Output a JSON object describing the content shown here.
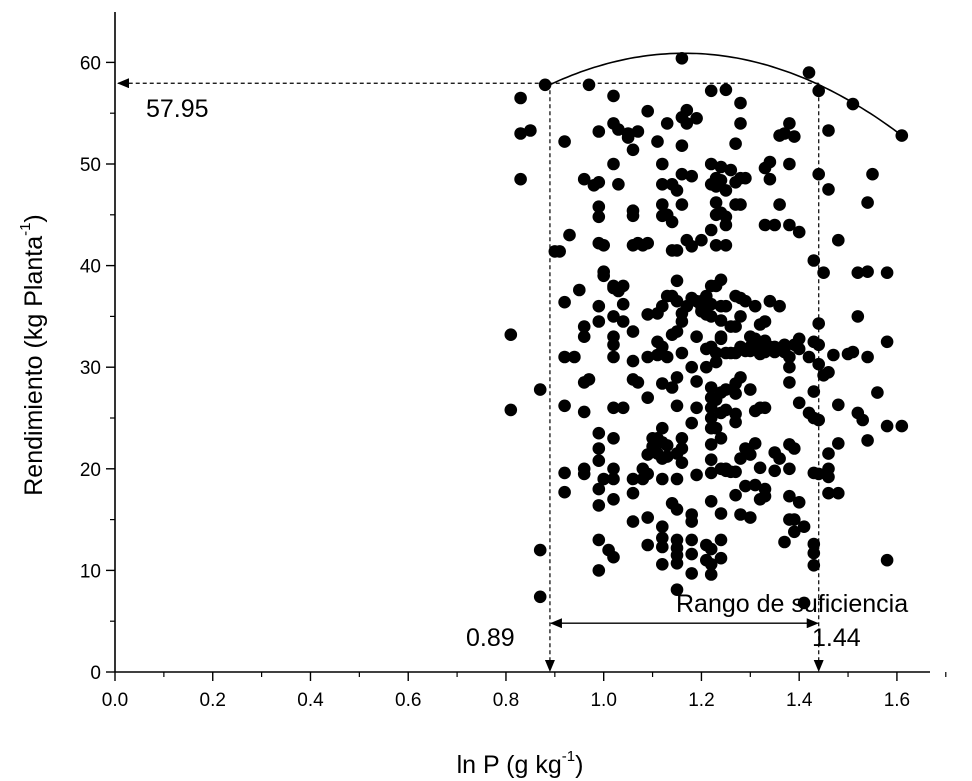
{
  "chart_data": {
    "type": "scatter",
    "xlabel": {
      "main": "ln P (g kg",
      "sup": "-1",
      "tail": ")"
    },
    "ylabel": {
      "main": "Rendimiento (kg Planta",
      "sup": "-1",
      "tail": ")"
    },
    "xlim": [
      0.0,
      1.7
    ],
    "ylim": [
      0,
      65
    ],
    "xticks": [
      "0.0",
      "0.2",
      "0.4",
      "0.6",
      "0.8",
      "1.0",
      "1.2",
      "1.4",
      "1.6"
    ],
    "yticks": [
      "0",
      "10",
      "20",
      "30",
      "40",
      "50",
      "60"
    ],
    "grid": false,
    "fit_curve": {
      "type": "quadratic",
      "x_start": 0.88,
      "x_end": 1.61,
      "vertex_x": 1.165,
      "vertex_y": 60.9,
      "end_y": 52.8
    },
    "annotations": {
      "optimum_yield": "57.95",
      "optimum_yield_value": 57.95,
      "lower_limit": "0.89",
      "lower_limit_value": 0.89,
      "upper_limit": "1.44",
      "upper_limit_value": 1.44,
      "range_label": "Rango de suficiencia",
      "range_arrow_y": 4.8
    },
    "points": [
      [
        0.81,
        33.2
      ],
      [
        0.81,
        25.8
      ],
      [
        0.83,
        56.5
      ],
      [
        0.83,
        53
      ],
      [
        0.83,
        48.5
      ],
      [
        0.85,
        53.3
      ],
      [
        0.87,
        12
      ],
      [
        0.87,
        7.4
      ],
      [
        0.87,
        27.8
      ],
      [
        0.88,
        57.8
      ],
      [
        0.9,
        41.4
      ],
      [
        0.91,
        41.4
      ],
      [
        0.92,
        52.2
      ],
      [
        0.92,
        36.4
      ],
      [
        0.92,
        31
      ],
      [
        0.92,
        26.2
      ],
      [
        0.92,
        19.6
      ],
      [
        0.92,
        17.7
      ],
      [
        0.93,
        43
      ],
      [
        0.94,
        31
      ],
      [
        0.95,
        37.6
      ],
      [
        0.96,
        48.5
      ],
      [
        0.96,
        34
      ],
      [
        0.96,
        33
      ],
      [
        0.96,
        28.5
      ],
      [
        0.96,
        25.6
      ],
      [
        0.96,
        20
      ],
      [
        0.96,
        19.5
      ],
      [
        0.97,
        57.8
      ],
      [
        0.97,
        28.8
      ],
      [
        0.98,
        47.9
      ],
      [
        0.99,
        53.2
      ],
      [
        0.99,
        48.2
      ],
      [
        0.99,
        45.8
      ],
      [
        0.99,
        44.8
      ],
      [
        0.99,
        42.2
      ],
      [
        0.99,
        36
      ],
      [
        0.99,
        34.5
      ],
      [
        0.99,
        23.5
      ],
      [
        0.99,
        22
      ],
      [
        0.99,
        20.8
      ],
      [
        0.99,
        18
      ],
      [
        0.99,
        16.4
      ],
      [
        0.99,
        13
      ],
      [
        0.99,
        10
      ],
      [
        1.0,
        42
      ],
      [
        1.0,
        39.4
      ],
      [
        1.0,
        39
      ],
      [
        1.0,
        19
      ],
      [
        1.01,
        12
      ],
      [
        1.02,
        56.7
      ],
      [
        1.02,
        54
      ],
      [
        1.02,
        50
      ],
      [
        1.02,
        38
      ],
      [
        1.02,
        37.8
      ],
      [
        1.02,
        35
      ],
      [
        1.02,
        33
      ],
      [
        1.02,
        32.2
      ],
      [
        1.02,
        31
      ],
      [
        1.02,
        26
      ],
      [
        1.02,
        23
      ],
      [
        1.02,
        20
      ],
      [
        1.02,
        19
      ],
      [
        1.02,
        17
      ],
      [
        1.02,
        11.3
      ],
      [
        1.03,
        53.4
      ],
      [
        1.03,
        48
      ],
      [
        1.03,
        37.5
      ],
      [
        1.04,
        38
      ],
      [
        1.04,
        36.2
      ],
      [
        1.04,
        34.5
      ],
      [
        1.04,
        26
      ],
      [
        1.05,
        53
      ],
      [
        1.05,
        52.6
      ],
      [
        1.06,
        51.4
      ],
      [
        1.06,
        45.4
      ],
      [
        1.06,
        44.9
      ],
      [
        1.06,
        42
      ],
      [
        1.06,
        33.5
      ],
      [
        1.06,
        30.6
      ],
      [
        1.06,
        28.8
      ],
      [
        1.06,
        19
      ],
      [
        1.06,
        17.6
      ],
      [
        1.06,
        14.8
      ],
      [
        1.07,
        42.2
      ],
      [
        1.07,
        53.2
      ],
      [
        1.07,
        28.5
      ],
      [
        1.08,
        42
      ],
      [
        1.08,
        19
      ],
      [
        1.08,
        20
      ],
      [
        1.09,
        55.2
      ],
      [
        1.09,
        42.2
      ],
      [
        1.09,
        35.2
      ],
      [
        1.09,
        31
      ],
      [
        1.09,
        27
      ],
      [
        1.09,
        21.4
      ],
      [
        1.09,
        19.5
      ],
      [
        1.09,
        15.2
      ],
      [
        1.09,
        12.5
      ],
      [
        1.1,
        23
      ],
      [
        1.1,
        22.2
      ],
      [
        1.11,
        52.2
      ],
      [
        1.11,
        35.3
      ],
      [
        1.11,
        32.5
      ],
      [
        1.11,
        31.2
      ],
      [
        1.11,
        23
      ],
      [
        1.11,
        21.5
      ],
      [
        1.12,
        50
      ],
      [
        1.12,
        48
      ],
      [
        1.12,
        46
      ],
      [
        1.12,
        44.9
      ],
      [
        1.12,
        36
      ],
      [
        1.12,
        32
      ],
      [
        1.12,
        28.4
      ],
      [
        1.12,
        24
      ],
      [
        1.12,
        22.6
      ],
      [
        1.12,
        21
      ],
      [
        1.12,
        19
      ],
      [
        1.12,
        14.3
      ],
      [
        1.12,
        13.2
      ],
      [
        1.12,
        12.3
      ],
      [
        1.12,
        10.6
      ],
      [
        1.13,
        54
      ],
      [
        1.13,
        45
      ],
      [
        1.13,
        37
      ],
      [
        1.13,
        31
      ],
      [
        1.13,
        22.3
      ],
      [
        1.13,
        21.2
      ],
      [
        1.14,
        48
      ],
      [
        1.14,
        44.3
      ],
      [
        1.14,
        41.5
      ],
      [
        1.14,
        37
      ],
      [
        1.14,
        33.2
      ],
      [
        1.14,
        28
      ],
      [
        1.14,
        16.6
      ],
      [
        1.15,
        47.4
      ],
      [
        1.15,
        41.5
      ],
      [
        1.15,
        38.5
      ],
      [
        1.15,
        36.5
      ],
      [
        1.15,
        33.5
      ],
      [
        1.15,
        29
      ],
      [
        1.15,
        26.2
      ],
      [
        1.15,
        21.5
      ],
      [
        1.15,
        19
      ],
      [
        1.15,
        16
      ],
      [
        1.15,
        13
      ],
      [
        1.15,
        12.2
      ],
      [
        1.15,
        11.5
      ],
      [
        1.15,
        10.7
      ],
      [
        1.15,
        8.1
      ],
      [
        1.16,
        60.4
      ],
      [
        1.16,
        54.6
      ],
      [
        1.16,
        51.8
      ],
      [
        1.16,
        49
      ],
      [
        1.16,
        46
      ],
      [
        1.16,
        35.3
      ],
      [
        1.16,
        34.5
      ],
      [
        1.16,
        31.4
      ],
      [
        1.16,
        23
      ],
      [
        1.16,
        22
      ],
      [
        1.16,
        20.6
      ],
      [
        1.17,
        55.3
      ],
      [
        1.17,
        54
      ],
      [
        1.17,
        42.5
      ],
      [
        1.17,
        36
      ],
      [
        1.18,
        48.8
      ],
      [
        1.18,
        41.9
      ],
      [
        1.18,
        36.8
      ],
      [
        1.18,
        30
      ],
      [
        1.18,
        24.5
      ],
      [
        1.18,
        15.5
      ],
      [
        1.18,
        14.8
      ],
      [
        1.18,
        13
      ],
      [
        1.18,
        11.6
      ],
      [
        1.18,
        9.7
      ],
      [
        1.19,
        54.5
      ],
      [
        1.19,
        36.5
      ],
      [
        1.19,
        33
      ],
      [
        1.19,
        28.6
      ],
      [
        1.19,
        26
      ],
      [
        1.19,
        19.4
      ],
      [
        1.2,
        36.5
      ],
      [
        1.2,
        36
      ],
      [
        1.2,
        42.5
      ],
      [
        1.2,
        35.5
      ],
      [
        1.21,
        37
      ],
      [
        1.21,
        35.2
      ],
      [
        1.21,
        31.8
      ],
      [
        1.21,
        30
      ],
      [
        1.21,
        12.5
      ],
      [
        1.21,
        11
      ],
      [
        1.22,
        57.2
      ],
      [
        1.22,
        50
      ],
      [
        1.22,
        48
      ],
      [
        1.22,
        43.5
      ],
      [
        1.22,
        38
      ],
      [
        1.22,
        36.2
      ],
      [
        1.22,
        35
      ],
      [
        1.22,
        32
      ],
      [
        1.22,
        28
      ],
      [
        1.22,
        27
      ],
      [
        1.22,
        26
      ],
      [
        1.22,
        25
      ],
      [
        1.22,
        24
      ],
      [
        1.22,
        22.4
      ],
      [
        1.22,
        20.9
      ],
      [
        1.22,
        19.6
      ],
      [
        1.22,
        16.8
      ],
      [
        1.22,
        12.1
      ],
      [
        1.22,
        10.6
      ],
      [
        1.22,
        9.6
      ],
      [
        1.23,
        48.6
      ],
      [
        1.23,
        47.8
      ],
      [
        1.23,
        46.2
      ],
      [
        1.23,
        45
      ],
      [
        1.23,
        42
      ],
      [
        1.23,
        38
      ],
      [
        1.23,
        31.4
      ],
      [
        1.23,
        30.5
      ],
      [
        1.23,
        26.8
      ],
      [
        1.23,
        24
      ],
      [
        1.24,
        49.7
      ],
      [
        1.24,
        48.4
      ],
      [
        1.24,
        45.2
      ],
      [
        1.24,
        38.6
      ],
      [
        1.24,
        36
      ],
      [
        1.24,
        34.6
      ],
      [
        1.24,
        33
      ],
      [
        1.24,
        32.8
      ],
      [
        1.24,
        27.5
      ],
      [
        1.24,
        25.5
      ],
      [
        1.24,
        23
      ],
      [
        1.24,
        20
      ],
      [
        1.24,
        15.6
      ],
      [
        1.24,
        13
      ],
      [
        1.24,
        11.2
      ],
      [
        1.25,
        57.3
      ],
      [
        1.25,
        47.4
      ],
      [
        1.25,
        44.8
      ],
      [
        1.25,
        44
      ],
      [
        1.25,
        42
      ],
      [
        1.25,
        36
      ],
      [
        1.25,
        31.4
      ],
      [
        1.25,
        27.8
      ],
      [
        1.25,
        25.8
      ],
      [
        1.25,
        20
      ],
      [
        1.25,
        19.8
      ],
      [
        1.26,
        49.4
      ],
      [
        1.26,
        34
      ],
      [
        1.26,
        31.4
      ],
      [
        1.26,
        19.7
      ],
      [
        1.27,
        52
      ],
      [
        1.27,
        48.2
      ],
      [
        1.27,
        46
      ],
      [
        1.27,
        37
      ],
      [
        1.27,
        34
      ],
      [
        1.27,
        31.4
      ],
      [
        1.27,
        28.4
      ],
      [
        1.27,
        27.4
      ],
      [
        1.27,
        25.4
      ],
      [
        1.27,
        24.6
      ],
      [
        1.27,
        19.7
      ],
      [
        1.27,
        17.4
      ],
      [
        1.28,
        56
      ],
      [
        1.28,
        54
      ],
      [
        1.28,
        48.6
      ],
      [
        1.28,
        46
      ],
      [
        1.28,
        36.8
      ],
      [
        1.28,
        35
      ],
      [
        1.28,
        32
      ],
      [
        1.28,
        29
      ],
      [
        1.28,
        21
      ],
      [
        1.28,
        15.5
      ],
      [
        1.29,
        48.6
      ],
      [
        1.29,
        36.5
      ],
      [
        1.29,
        31.6
      ],
      [
        1.29,
        22
      ],
      [
        1.29,
        18.3
      ],
      [
        1.3,
        33
      ],
      [
        1.3,
        32
      ],
      [
        1.3,
        31.6
      ],
      [
        1.3,
        27.8
      ],
      [
        1.3,
        21.4
      ],
      [
        1.3,
        15.2
      ],
      [
        1.31,
        36
      ],
      [
        1.31,
        32.8
      ],
      [
        1.31,
        25.7
      ],
      [
        1.31,
        22.5
      ],
      [
        1.31,
        18.4
      ],
      [
        1.32,
        34.2
      ],
      [
        1.32,
        32
      ],
      [
        1.32,
        31.3
      ],
      [
        1.32,
        26
      ],
      [
        1.32,
        20.1
      ],
      [
        1.32,
        17
      ],
      [
        1.33,
        49.6
      ],
      [
        1.33,
        44
      ],
      [
        1.33,
        34.5
      ],
      [
        1.33,
        32.6
      ],
      [
        1.33,
        31.5
      ],
      [
        1.33,
        26
      ],
      [
        1.33,
        18
      ],
      [
        1.33,
        17.3
      ],
      [
        1.34,
        50.2
      ],
      [
        1.34,
        48.5
      ],
      [
        1.34,
        36.5
      ],
      [
        1.34,
        32
      ],
      [
        1.34,
        31.8
      ],
      [
        1.35,
        44
      ],
      [
        1.35,
        32
      ],
      [
        1.35,
        31.8
      ],
      [
        1.35,
        31.5
      ],
      [
        1.35,
        21.6
      ],
      [
        1.35,
        19.8
      ],
      [
        1.36,
        52.8
      ],
      [
        1.36,
        46
      ],
      [
        1.36,
        36
      ],
      [
        1.36,
        21
      ],
      [
        1.37,
        53
      ],
      [
        1.37,
        32.2
      ],
      [
        1.37,
        31.5
      ],
      [
        1.37,
        12.8
      ],
      [
        1.38,
        54
      ],
      [
        1.38,
        50
      ],
      [
        1.38,
        44
      ],
      [
        1.38,
        31
      ],
      [
        1.38,
        30
      ],
      [
        1.38,
        28.5
      ],
      [
        1.38,
        22.4
      ],
      [
        1.38,
        20
      ],
      [
        1.38,
        17.3
      ],
      [
        1.38,
        15
      ],
      [
        1.39,
        52.7
      ],
      [
        1.39,
        32.2
      ],
      [
        1.39,
        22
      ],
      [
        1.39,
        15
      ],
      [
        1.39,
        13.8
      ],
      [
        1.4,
        43.3
      ],
      [
        1.4,
        32.8
      ],
      [
        1.4,
        31.8
      ],
      [
        1.4,
        26.5
      ],
      [
        1.4,
        16.7
      ],
      [
        1.41,
        14.3
      ],
      [
        1.41,
        6.8
      ],
      [
        1.42,
        59
      ],
      [
        1.42,
        31
      ],
      [
        1.42,
        25.5
      ],
      [
        1.43,
        40.5
      ],
      [
        1.43,
        32.5
      ],
      [
        1.43,
        27.6
      ],
      [
        1.43,
        25
      ],
      [
        1.43,
        19.6
      ],
      [
        1.43,
        12.6
      ],
      [
        1.43,
        11.7
      ],
      [
        1.43,
        10.5
      ],
      [
        1.44,
        57.2
      ],
      [
        1.44,
        49
      ],
      [
        1.44,
        34.3
      ],
      [
        1.44,
        32.2
      ],
      [
        1.44,
        30.3
      ],
      [
        1.44,
        24.8
      ],
      [
        1.44,
        19.5
      ],
      [
        1.45,
        39.3
      ],
      [
        1.45,
        29.2
      ],
      [
        1.46,
        53.3
      ],
      [
        1.46,
        47.5
      ],
      [
        1.46,
        29.5
      ],
      [
        1.46,
        21.5
      ],
      [
        1.46,
        20
      ],
      [
        1.46,
        19.2
      ],
      [
        1.46,
        17.6
      ],
      [
        1.47,
        31.2
      ],
      [
        1.48,
        42.5
      ],
      [
        1.48,
        26.3
      ],
      [
        1.48,
        22.5
      ],
      [
        1.48,
        17.6
      ],
      [
        1.5,
        31.3
      ],
      [
        1.51,
        55.9
      ],
      [
        1.51,
        31.5
      ],
      [
        1.52,
        39.3
      ],
      [
        1.52,
        35
      ],
      [
        1.52,
        25.5
      ],
      [
        1.53,
        24.8
      ],
      [
        1.54,
        46.2
      ],
      [
        1.54,
        39.4
      ],
      [
        1.54,
        31
      ],
      [
        1.54,
        22.8
      ],
      [
        1.55,
        49
      ],
      [
        1.56,
        27.5
      ],
      [
        1.58,
        39.3
      ],
      [
        1.58,
        32.5
      ],
      [
        1.58,
        24.2
      ],
      [
        1.58,
        11
      ],
      [
        1.61,
        24.2
      ],
      [
        1.61,
        52.8
      ]
    ]
  }
}
